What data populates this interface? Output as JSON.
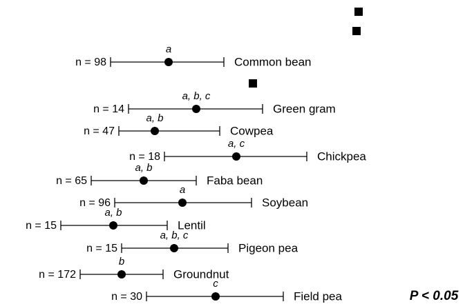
{
  "chart_data": {
    "type": "forest",
    "xlim": [
      0,
      100
    ],
    "color": "#000000",
    "annotation": "P < 0.05",
    "categories": [
      "Common bean",
      "Green gram",
      "Cowpea",
      "Chickpea",
      "Faba bean",
      "Soybean",
      "Lentil",
      "Pigeon pea",
      "Groundnut",
      "Field pea"
    ],
    "n_labels": [
      "n = 98",
      "n = 14",
      "n = 47",
      "n = 18",
      "n = 65",
      "n = 96",
      "n = 15",
      "n = 15",
      "n = 172",
      "n = 30"
    ],
    "groups": [
      "a",
      "a, b, c",
      "a, b",
      "a, c",
      "a, b",
      "a",
      "a, b",
      "a, b, c",
      "b",
      "c"
    ],
    "values": [
      41,
      51,
      36,
      65.5,
      32,
      46,
      21,
      43,
      24,
      58
    ],
    "lower": [
      20,
      26.5,
      23,
      39.5,
      13,
      21.5,
      2,
      24,
      9,
      33
    ],
    "upper": [
      61,
      75,
      59.5,
      91,
      51,
      71,
      40.5,
      62.5,
      39,
      82.5
    ]
  }
}
